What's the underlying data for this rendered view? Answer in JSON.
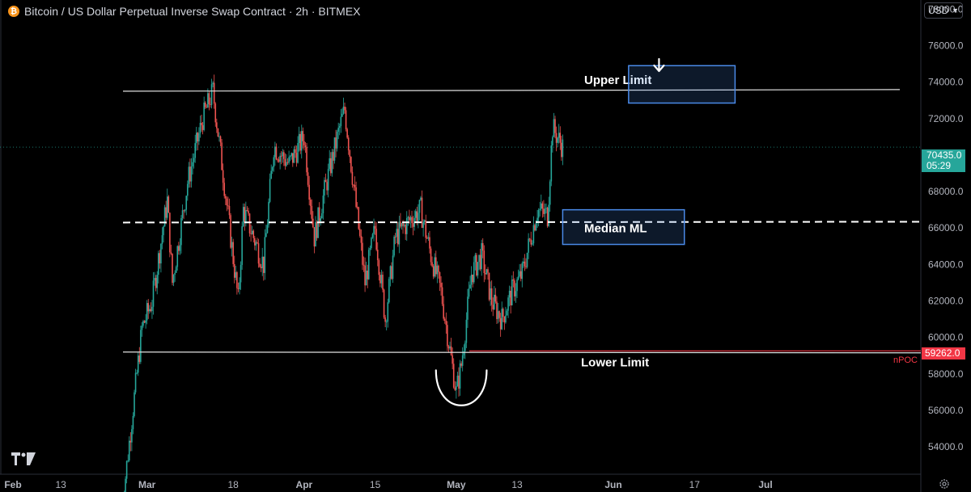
{
  "header": {
    "icon": "bitcoin-icon",
    "title": "Bitcoin / US Dollar Perpetual Inverse Swap Contract · 2h · BITMEX"
  },
  "currency_selector": {
    "label": "USD"
  },
  "price_badge": {
    "price": "70435.0",
    "countdown": "05:29"
  },
  "poc_badge": {
    "price": "59262.0",
    "label": "nPOC"
  },
  "colors": {
    "up": "#26a69a",
    "down": "#ef5350",
    "box": "#4a8ae8",
    "poc": "#f23645"
  },
  "chart_data": {
    "type": "candlestick",
    "interval": "2h",
    "y_ticks": [
      54000,
      56000,
      58000,
      60000,
      62000,
      64000,
      66000,
      68000,
      70000,
      72000,
      74000,
      76000,
      78000
    ],
    "y_tick_labels": [
      "54000.0",
      "56000.0",
      "58000.0",
      "60000.0",
      "62000.0",
      "64000.0",
      "66000.0",
      "68000.0",
      "70000.0",
      "72000.0",
      "74000.0",
      "76000.0",
      "78000.0"
    ],
    "x_ticks": [
      "Feb",
      "13",
      "Mar",
      "18",
      "Apr",
      "15",
      "May",
      "13",
      "Jun",
      "17",
      "Jul"
    ],
    "x_tick_dates": [
      "2024-02-01",
      "2024-02-13",
      "2024-03-01",
      "2024-03-18",
      "2024-04-01",
      "2024-04-15",
      "2024-05-01",
      "2024-05-13",
      "2024-06-01",
      "2024-06-17",
      "2024-07-01"
    ],
    "x_range": [
      "2024-02-01",
      "2024-07-01"
    ],
    "y_range": [
      52500,
      78500
    ],
    "price_path": [
      [
        "2024-02-25",
        50500
      ],
      [
        "2024-02-29",
        60500
      ],
      [
        "2024-03-02",
        62000
      ],
      [
        "2024-03-05",
        67500
      ],
      [
        "2024-03-06",
        63000
      ],
      [
        "2024-03-09",
        68500
      ],
      [
        "2024-03-12",
        72000
      ],
      [
        "2024-03-14",
        73500
      ],
      [
        "2024-03-16",
        69000
      ],
      [
        "2024-03-19",
        62000
      ],
      [
        "2024-03-20",
        67000
      ],
      [
        "2024-03-24",
        64000
      ],
      [
        "2024-03-26",
        70500
      ],
      [
        "2024-03-29",
        69500
      ],
      [
        "2024-04-01",
        71000
      ],
      [
        "2024-04-03",
        65500
      ],
      [
        "2024-04-05",
        68000
      ],
      [
        "2024-04-08",
        71500
      ],
      [
        "2024-04-09",
        72500
      ],
      [
        "2024-04-13",
        63000
      ],
      [
        "2024-04-15",
        66000
      ],
      [
        "2024-04-17",
        61000
      ],
      [
        "2024-04-19",
        65500
      ],
      [
        "2024-04-22",
        66500
      ],
      [
        "2024-04-24",
        67000
      ],
      [
        "2024-04-26",
        64500
      ],
      [
        "2024-04-28",
        62500
      ],
      [
        "2024-05-01",
        57000
      ],
      [
        "2024-05-02",
        58500
      ],
      [
        "2024-05-04",
        63500
      ],
      [
        "2024-05-06",
        64500
      ],
      [
        "2024-05-08",
        62000
      ],
      [
        "2024-05-10",
        61000
      ],
      [
        "2024-05-12",
        62500
      ],
      [
        "2024-05-14",
        63500
      ],
      [
        "2024-05-17",
        67000
      ],
      [
        "2024-05-19",
        66700
      ],
      [
        "2024-05-20",
        71500
      ],
      [
        "2024-05-22",
        70435
      ]
    ],
    "levels": {
      "upper_limit": {
        "label": "Upper Limit",
        "value": 73500
      },
      "median_line": {
        "label": "Median ML",
        "value": 66300
      },
      "lower_limit": {
        "label": "Lower Limit",
        "value": 59200
      },
      "npoc": {
        "label": "nPOC",
        "value": 59262
      }
    },
    "annotations": {
      "upper_box": {
        "date_start": "2024-06-04",
        "date_end": "2024-06-25",
        "top": 74900,
        "bottom": 72850
      },
      "median_box": {
        "date_start": "2024-05-22",
        "date_end": "2024-06-15",
        "top": 67000,
        "bottom": 65100
      },
      "down_arrow": {
        "date": "2024-06-10"
      },
      "u_curve": {
        "date_start": "2024-04-27",
        "date_end": "2024-05-07",
        "bottom": 55900,
        "top": 58200
      }
    }
  }
}
